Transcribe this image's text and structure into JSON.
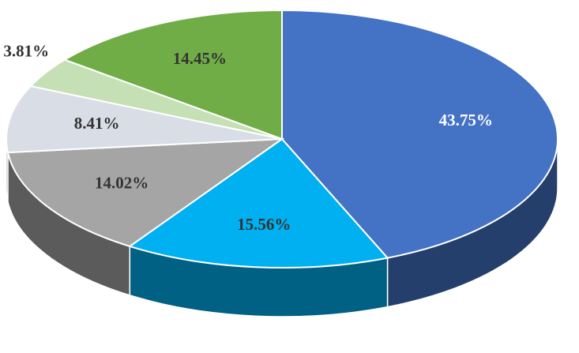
{
  "chart_data": {
    "type": "pie3d",
    "values": [
      43.75,
      15.56,
      14.02,
      8.41,
      3.81,
      14.45
    ],
    "value_labels": [
      "43.75%",
      "15.56%",
      "14.02%",
      "8.41%",
      "3.81%",
      "14.45%"
    ],
    "colors": [
      "#4472c4",
      "#00b0f0",
      "#a5a5a5",
      "#d9dde6",
      "#c5e0b4",
      "#70ad47"
    ],
    "label_colors": [
      "#ffffff",
      "#333333",
      "#333333",
      "#333333",
      "#333333",
      "#333333"
    ]
  }
}
